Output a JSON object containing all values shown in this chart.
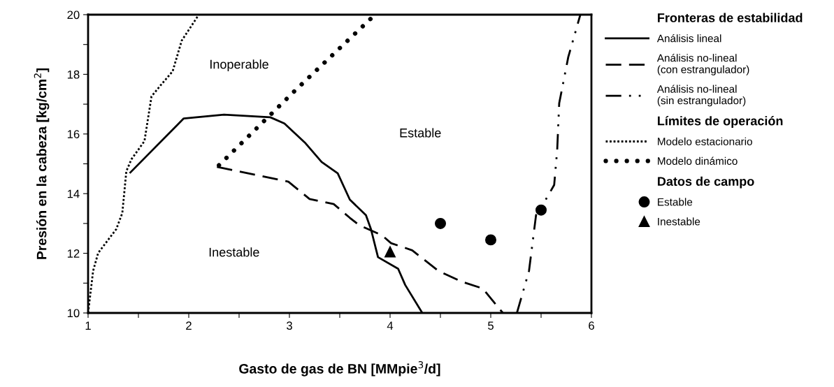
{
  "chart_data": {
    "type": "line",
    "xlabel": "Gasto de gas de BN [MMpie$^{3}$/d]",
    "ylabel": "Presión en la cabeza [kg/cm$^{2}$]",
    "xlim": [
      1,
      6
    ],
    "ylim": [
      10,
      20
    ],
    "xticks": [
      1,
      {
        "value": 1.5,
        "label": null
      },
      2,
      {
        "value": 2.5,
        "label": null
      },
      3,
      {
        "value": 3.5,
        "label": null
      },
      4,
      {
        "value": 4.5,
        "label": null
      },
      5,
      {
        "value": 5.5,
        "label": null
      },
      6
    ],
    "yticks": [
      10,
      {
        "value": 11,
        "label": null
      },
      12,
      {
        "value": 13,
        "label": null
      },
      14,
      {
        "value": 15,
        "label": null
      },
      16,
      {
        "value": 17,
        "label": null
      },
      18,
      {
        "value": 19,
        "label": null
      },
      20
    ],
    "grid": false,
    "legend": "right",
    "series": [
      {
        "name": "Análisis lineal",
        "line_style": "solid",
        "color": "#000000",
        "x": [
          1.42,
          1.95,
          2.35,
          2.81,
          2.95,
          3.16,
          3.32,
          3.48,
          3.6,
          3.76,
          3.81,
          3.88,
          4.08,
          4.15,
          4.32
        ],
        "values": [
          14.71,
          16.52,
          16.65,
          16.56,
          16.35,
          15.69,
          15.06,
          14.68,
          13.8,
          13.28,
          12.81,
          11.87,
          11.48,
          10.94,
          10.0
        ]
      },
      {
        "name": "Análisis no-lineal\n(con estrangulador)",
        "line_style": "dashed",
        "color": "#000000",
        "x": [
          2.28,
          2.99,
          3.2,
          3.44,
          3.6,
          3.69,
          3.92,
          4.01,
          4.22,
          4.48,
          4.71,
          4.92,
          5.12
        ],
        "values": [
          14.9,
          14.4,
          13.82,
          13.65,
          13.19,
          12.95,
          12.6,
          12.34,
          12.1,
          11.41,
          11.05,
          10.82,
          10.0
        ]
      },
      {
        "name": "Análisis no-lineal\n(sin estrangulador)",
        "line_style": "dashdotdot",
        "color": "#000000",
        "x": [
          5.26,
          5.38,
          5.45,
          5.49,
          5.63,
          5.66,
          5.68,
          5.77,
          5.89
        ],
        "values": [
          10.0,
          11.41,
          13.28,
          13.47,
          14.29,
          15.46,
          17.03,
          18.58,
          20.0
        ]
      },
      {
        "name": "Modelo estacionario",
        "line_style": "dotted",
        "color": "#000000",
        "x": [
          1.0,
          1.05,
          1.1,
          1.28,
          1.34,
          1.38,
          1.43,
          1.56,
          1.63,
          1.72,
          1.84,
          1.93,
          2.1
        ],
        "values": [
          10.0,
          11.41,
          12.01,
          12.81,
          13.35,
          14.75,
          15.15,
          15.76,
          17.26,
          17.63,
          18.1,
          19.13,
          20.0
        ]
      },
      {
        "name": "Modelo dinámico",
        "line_style": "round_dots",
        "color": "#000000",
        "x": [
          2.3,
          3.07,
          3.85
        ],
        "values": [
          14.95,
          17.5,
          20.0
        ]
      },
      {
        "name": "Estable",
        "type": "scatter",
        "marker": "circle",
        "color": "#000000",
        "x": [
          4.5,
          5.0,
          5.5
        ],
        "values": [
          13.0,
          12.45,
          13.45
        ]
      },
      {
        "name": "Inestable",
        "type": "scatter",
        "marker": "triangle",
        "color": "#000000",
        "x": [
          4.0
        ],
        "values": [
          12.05
        ]
      }
    ],
    "annotations": [
      "Fronteras de estabilidad",
      "Límites de operación",
      "Datos de campo",
      "Inoperable",
      "Estable",
      "Inestable"
    ]
  }
}
